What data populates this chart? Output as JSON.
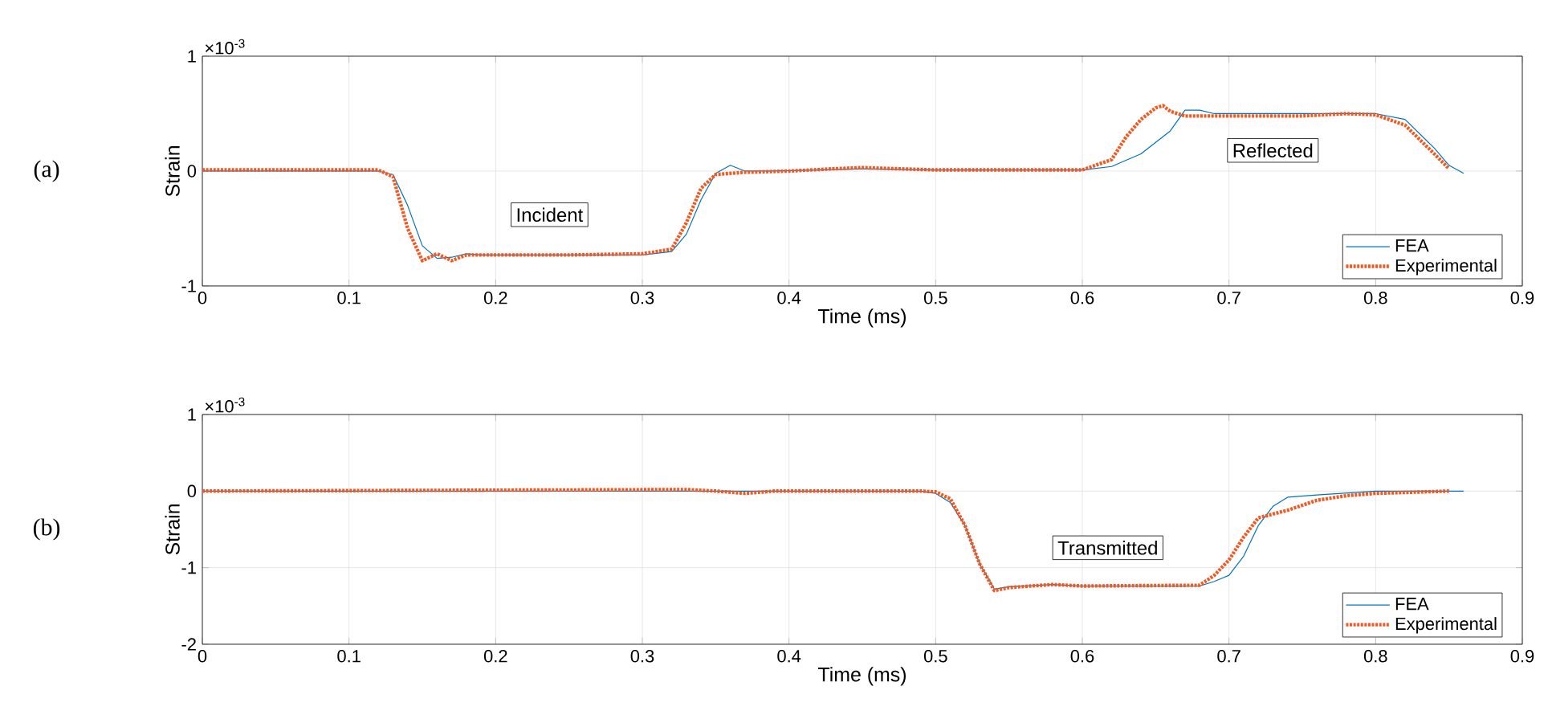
{
  "chart_data": [
    {
      "type": "line",
      "xlabel": "Time (ms)",
      "ylabel": "Strain",
      "xlim": [
        0,
        0.9
      ],
      "ylim": [
        -1,
        1
      ],
      "xticks": [
        0,
        0.1,
        0.2,
        0.3,
        0.4,
        0.5,
        0.6,
        0.7,
        0.8,
        0.9
      ],
      "yticks": [
        -1,
        0,
        1
      ],
      "grid": true,
      "legend": "bottom right",
      "annotations": [
        "×10$^{-3}$",
        "(a)",
        "Incident",
        "Reflected"
      ],
      "series": [
        {
          "name": "FEA",
          "color": "#0072bd",
          "line_style": "solid",
          "x": [
            0,
            0.12,
            0.13,
            0.14,
            0.15,
            0.16,
            0.17,
            0.18,
            0.19,
            0.25,
            0.3,
            0.32,
            0.33,
            0.34,
            0.35,
            0.36,
            0.37,
            0.39,
            0.45,
            0.5,
            0.6,
            0.62,
            0.64,
            0.66,
            0.67,
            0.68,
            0.69,
            0.8,
            0.82,
            0.84,
            0.85,
            0.86
          ],
          "values": [
            0,
            0,
            -0.03,
            -0.3,
            -0.65,
            -0.76,
            -0.75,
            -0.72,
            -0.73,
            -0.73,
            -0.73,
            -0.7,
            -0.55,
            -0.25,
            -0.02,
            0.05,
            0.0,
            0.0,
            0.02,
            0.01,
            0.01,
            0.04,
            0.15,
            0.35,
            0.53,
            0.53,
            0.5,
            0.5,
            0.45,
            0.2,
            0.05,
            -0.02
          ]
        },
        {
          "name": "Experimental",
          "color": "#f2581f",
          "line_style": "dotted",
          "x": [
            0,
            0.12,
            0.13,
            0.14,
            0.15,
            0.16,
            0.17,
            0.18,
            0.25,
            0.3,
            0.32,
            0.33,
            0.34,
            0.35,
            0.37,
            0.4,
            0.43,
            0.45,
            0.5,
            0.55,
            0.6,
            0.62,
            0.63,
            0.64,
            0.65,
            0.655,
            0.66,
            0.67,
            0.7,
            0.75,
            0.78,
            0.8,
            0.82,
            0.84,
            0.85
          ],
          "values": [
            0.01,
            0.01,
            -0.05,
            -0.5,
            -0.78,
            -0.72,
            -0.78,
            -0.73,
            -0.73,
            -0.72,
            -0.68,
            -0.45,
            -0.15,
            -0.03,
            -0.01,
            0.0,
            0.02,
            0.03,
            0.01,
            0.01,
            0.01,
            0.1,
            0.3,
            0.45,
            0.55,
            0.57,
            0.52,
            0.48,
            0.48,
            0.48,
            0.5,
            0.49,
            0.4,
            0.15,
            0.02
          ]
        }
      ]
    },
    {
      "type": "line",
      "xlabel": "Time (ms)",
      "ylabel": "Strain",
      "xlim": [
        0,
        0.9
      ],
      "ylim": [
        -2,
        1
      ],
      "xticks": [
        0,
        0.1,
        0.2,
        0.3,
        0.4,
        0.5,
        0.6,
        0.7,
        0.8,
        0.9
      ],
      "yticks": [
        -2,
        -1,
        0,
        1
      ],
      "grid": true,
      "legend": "bottom right",
      "annotations": [
        "×10$^{-3}$",
        "(b)",
        "Transmitted"
      ],
      "series": [
        {
          "name": "FEA",
          "color": "#0072bd",
          "line_style": "solid",
          "x": [
            0,
            0.49,
            0.5,
            0.51,
            0.52,
            0.53,
            0.54,
            0.55,
            0.58,
            0.6,
            0.68,
            0.69,
            0.7,
            0.71,
            0.72,
            0.73,
            0.74,
            0.76,
            0.8,
            0.86
          ],
          "values": [
            0,
            0,
            -0.03,
            -0.15,
            -0.45,
            -0.95,
            -1.28,
            -1.25,
            -1.22,
            -1.24,
            -1.24,
            -1.18,
            -1.1,
            -0.85,
            -0.45,
            -0.2,
            -0.08,
            -0.05,
            0,
            0
          ]
        },
        {
          "name": "Experimental",
          "color": "#f2581f",
          "line_style": "dotted",
          "x": [
            0,
            0.33,
            0.35,
            0.37,
            0.39,
            0.49,
            0.5,
            0.51,
            0.52,
            0.53,
            0.54,
            0.55,
            0.58,
            0.6,
            0.68,
            0.69,
            0.7,
            0.71,
            0.72,
            0.74,
            0.76,
            0.78,
            0.8,
            0.85
          ],
          "values": [
            0,
            0.02,
            0.0,
            -0.03,
            0,
            0.0,
            -0.01,
            -0.1,
            -0.45,
            -0.95,
            -1.3,
            -1.26,
            -1.22,
            -1.24,
            -1.23,
            -1.1,
            -0.9,
            -0.6,
            -0.35,
            -0.25,
            -0.12,
            -0.06,
            -0.03,
            0.0
          ]
        }
      ]
    }
  ]
}
